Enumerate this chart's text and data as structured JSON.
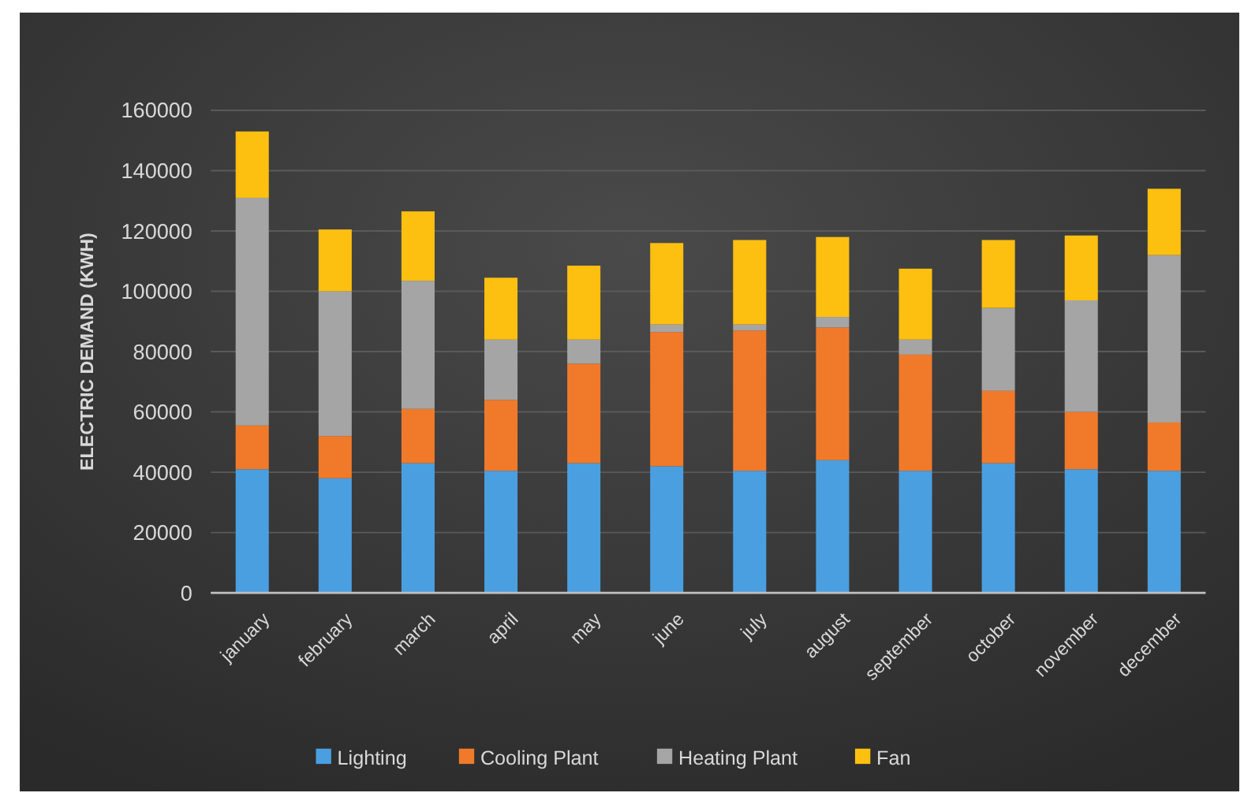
{
  "chart_data": {
    "type": "bar",
    "stacked": true,
    "ylabel": "ELECTRIC DEMAND (KWH)",
    "categories": [
      "january",
      "february",
      "march",
      "april",
      "may",
      "june",
      "july",
      "august",
      "september",
      "october",
      "november",
      "december"
    ],
    "series": [
      {
        "name": "Lighting",
        "color": "#4a9fe0",
        "values": [
          41000,
          38000,
          43000,
          40500,
          43000,
          42000,
          40500,
          44000,
          40500,
          43000,
          41000,
          40500
        ]
      },
      {
        "name": "Cooling Plant",
        "color": "#f07a2a",
        "values": [
          14500,
          14000,
          18000,
          23500,
          33000,
          44500,
          46500,
          44000,
          38500,
          24000,
          19000,
          16000
        ]
      },
      {
        "name": "Heating Plant",
        "color": "#a5a5a5",
        "values": [
          75500,
          48000,
          42500,
          20000,
          8000,
          2500,
          2000,
          3500,
          5000,
          27500,
          37000,
          55500
        ]
      },
      {
        "name": "Fan",
        "color": "#fdc010",
        "values": [
          22000,
          20500,
          23000,
          20500,
          24500,
          27000,
          28000,
          26500,
          23500,
          22500,
          21500,
          22000
        ]
      }
    ],
    "ylim": [
      0,
      160000
    ],
    "yticks": [
      0,
      20000,
      40000,
      60000,
      80000,
      100000,
      120000,
      140000,
      160000
    ],
    "grid": "y",
    "legend": "bottom"
  }
}
